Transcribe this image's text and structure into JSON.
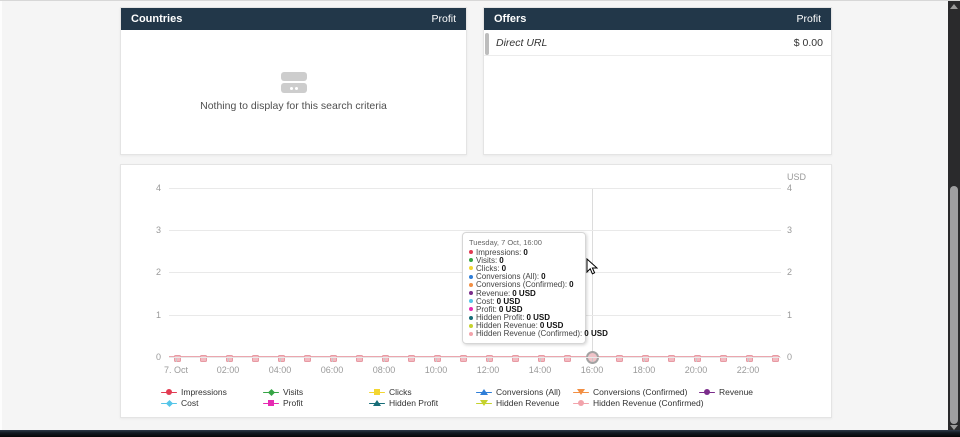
{
  "panels": {
    "countries": {
      "title": "Countries",
      "value_header": "Profit",
      "empty_text": "Nothing to display for this search criteria"
    },
    "offers": {
      "title": "Offers",
      "value_header": "Profit",
      "rows": [
        {
          "name": "Direct URL",
          "value": "$ 0.00"
        }
      ]
    }
  },
  "chart": {
    "unit_label": "USD",
    "y_ticks_left": [
      "4",
      "3",
      "2",
      "1",
      "0"
    ],
    "y_ticks_right": [
      "4",
      "3",
      "2",
      "1",
      "0"
    ],
    "x_ticks": [
      "7. Oct",
      "02:00",
      "04:00",
      "06:00",
      "08:00",
      "10:00",
      "12:00",
      "14:00",
      "16:00",
      "18:00",
      "20:00",
      "22:00"
    ],
    "series_line_color": "#eba6ae",
    "marker_fill": "#f3b9c0",
    "marker_border": "#e79aa3",
    "hover_marker_fill": "#f0c3c8",
    "hovered_x_label": "16:00",
    "tooltip": {
      "title": "Tuesday, 7 Oct, 16:00",
      "items": [
        {
          "label": "Impressions",
          "value": "0",
          "color": "#e23b52"
        },
        {
          "label": "Visits",
          "value": "0",
          "color": "#36a546"
        },
        {
          "label": "Clicks",
          "value": "0",
          "color": "#f3d631"
        },
        {
          "label": "Conversions (All)",
          "value": "0",
          "color": "#2f7ed8"
        },
        {
          "label": "Conversions (Confirmed)",
          "value": "0",
          "color": "#f28f43"
        },
        {
          "label": "Revenue",
          "value": "0 USD",
          "color": "#7b2d8b"
        },
        {
          "label": "Cost",
          "value": "0 USD",
          "color": "#55c5e8"
        },
        {
          "label": "Profit",
          "value": "0 USD",
          "color": "#e62ab2"
        },
        {
          "label": "Hidden Profit",
          "value": "0 USD",
          "color": "#176d78"
        },
        {
          "label": "Hidden Revenue",
          "value": "0 USD",
          "color": "#c5d22e"
        },
        {
          "label": "Hidden Revenue (Confirmed)",
          "value": "0 USD",
          "color": "#f2a3ab"
        }
      ]
    },
    "legend": [
      {
        "label": "Impressions",
        "color": "#e23b52",
        "symbol": "circle"
      },
      {
        "label": "Visits",
        "color": "#36a546",
        "symbol": "diamond"
      },
      {
        "label": "Clicks",
        "color": "#f3d631",
        "symbol": "square"
      },
      {
        "label": "Conversions (All)",
        "color": "#2f7ed8",
        "symbol": "triangle"
      },
      {
        "label": "Conversions (Confirmed)",
        "color": "#f28f43",
        "symbol": "triangle-down"
      },
      {
        "label": "Revenue",
        "color": "#7b2d8b",
        "symbol": "circle"
      },
      {
        "label": "Cost",
        "color": "#55c5e8",
        "symbol": "diamond"
      },
      {
        "label": "Profit",
        "color": "#e62ab2",
        "symbol": "square"
      },
      {
        "label": "Hidden Profit",
        "color": "#176d78",
        "symbol": "triangle"
      },
      {
        "label": "Hidden Revenue",
        "color": "#c5d22e",
        "symbol": "triangle-down"
      },
      {
        "label": "Hidden Revenue (Confirmed)",
        "color": "#f2a3ab",
        "symbol": "circle"
      }
    ]
  },
  "chart_data": {
    "type": "line",
    "title": "",
    "xlabel": "",
    "ylabel_right": "USD",
    "ylim": [
      0,
      4
    ],
    "grid": true,
    "legend_position": "bottom",
    "x": [
      "00:00",
      "01:00",
      "02:00",
      "03:00",
      "04:00",
      "05:00",
      "06:00",
      "07:00",
      "08:00",
      "09:00",
      "10:00",
      "11:00",
      "12:00",
      "13:00",
      "14:00",
      "15:00",
      "16:00",
      "17:00",
      "18:00",
      "19:00",
      "20:00",
      "21:00",
      "22:00",
      "23:00"
    ],
    "x_date": "7. Oct",
    "series": [
      {
        "name": "Impressions",
        "values": [
          0,
          0,
          0,
          0,
          0,
          0,
          0,
          0,
          0,
          0,
          0,
          0,
          0,
          0,
          0,
          0,
          0,
          0,
          0,
          0,
          0,
          0,
          0,
          0
        ]
      },
      {
        "name": "Visits",
        "values": [
          0,
          0,
          0,
          0,
          0,
          0,
          0,
          0,
          0,
          0,
          0,
          0,
          0,
          0,
          0,
          0,
          0,
          0,
          0,
          0,
          0,
          0,
          0,
          0
        ]
      },
      {
        "name": "Clicks",
        "values": [
          0,
          0,
          0,
          0,
          0,
          0,
          0,
          0,
          0,
          0,
          0,
          0,
          0,
          0,
          0,
          0,
          0,
          0,
          0,
          0,
          0,
          0,
          0,
          0
        ]
      },
      {
        "name": "Conversions (All)",
        "values": [
          0,
          0,
          0,
          0,
          0,
          0,
          0,
          0,
          0,
          0,
          0,
          0,
          0,
          0,
          0,
          0,
          0,
          0,
          0,
          0,
          0,
          0,
          0,
          0
        ]
      },
      {
        "name": "Conversions (Confirmed)",
        "values": [
          0,
          0,
          0,
          0,
          0,
          0,
          0,
          0,
          0,
          0,
          0,
          0,
          0,
          0,
          0,
          0,
          0,
          0,
          0,
          0,
          0,
          0,
          0,
          0
        ]
      },
      {
        "name": "Revenue",
        "values": [
          0,
          0,
          0,
          0,
          0,
          0,
          0,
          0,
          0,
          0,
          0,
          0,
          0,
          0,
          0,
          0,
          0,
          0,
          0,
          0,
          0,
          0,
          0,
          0
        ]
      },
      {
        "name": "Cost",
        "values": [
          0,
          0,
          0,
          0,
          0,
          0,
          0,
          0,
          0,
          0,
          0,
          0,
          0,
          0,
          0,
          0,
          0,
          0,
          0,
          0,
          0,
          0,
          0,
          0
        ]
      },
      {
        "name": "Profit",
        "values": [
          0,
          0,
          0,
          0,
          0,
          0,
          0,
          0,
          0,
          0,
          0,
          0,
          0,
          0,
          0,
          0,
          0,
          0,
          0,
          0,
          0,
          0,
          0,
          0
        ]
      },
      {
        "name": "Hidden Profit",
        "values": [
          0,
          0,
          0,
          0,
          0,
          0,
          0,
          0,
          0,
          0,
          0,
          0,
          0,
          0,
          0,
          0,
          0,
          0,
          0,
          0,
          0,
          0,
          0,
          0
        ]
      },
      {
        "name": "Hidden Revenue",
        "values": [
          0,
          0,
          0,
          0,
          0,
          0,
          0,
          0,
          0,
          0,
          0,
          0,
          0,
          0,
          0,
          0,
          0,
          0,
          0,
          0,
          0,
          0,
          0,
          0
        ]
      },
      {
        "name": "Hidden Revenue (Confirmed)",
        "values": [
          0,
          0,
          0,
          0,
          0,
          0,
          0,
          0,
          0,
          0,
          0,
          0,
          0,
          0,
          0,
          0,
          0,
          0,
          0,
          0,
          0,
          0,
          0,
          0
        ]
      }
    ]
  }
}
